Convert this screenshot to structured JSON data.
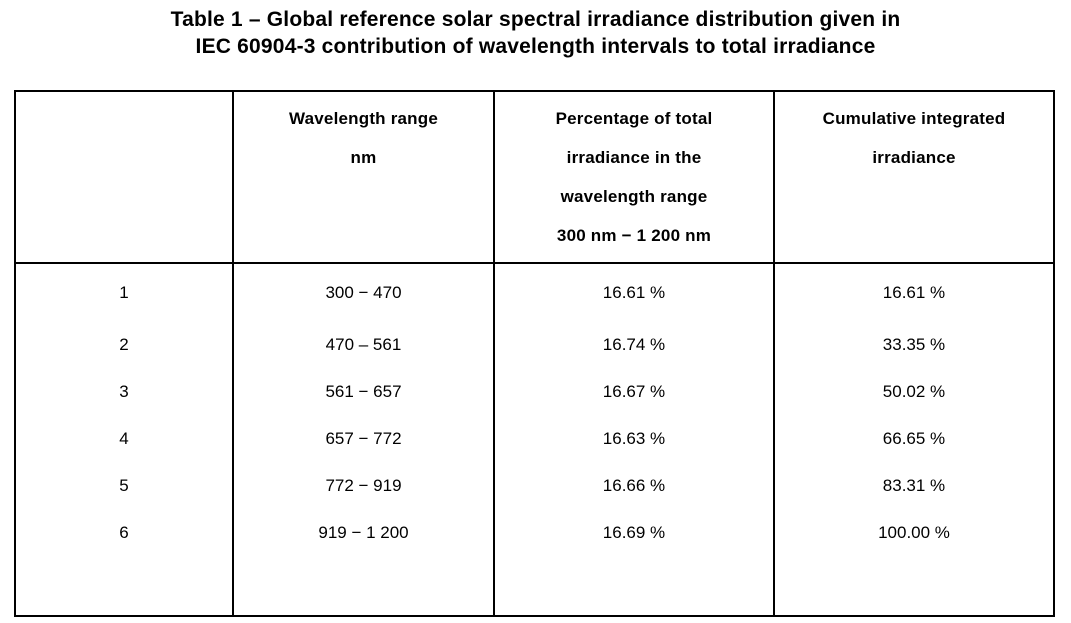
{
  "title": {
    "line1": "Table 1 – Global reference solar spectral irradiance distribution given in",
    "line2": "IEC 60904-3 contribution of wavelength intervals to total irradiance"
  },
  "table": {
    "headers": {
      "row_number": "",
      "wavelength": {
        "line1": "Wavelength range",
        "line2": "nm"
      },
      "percentage": {
        "line1": "Percentage of total",
        "line2": "irradiance in the",
        "line3": "wavelength range",
        "line4": "300 nm − 1 200 nm"
      },
      "cumulative": {
        "line1": "Cumulative integrated",
        "line2": "irradiance"
      }
    },
    "rows": [
      {
        "number": "1",
        "wavelength_range": "300 − 470",
        "percentage_of_total": "16.61 %",
        "cumulative_irradiance": "16.61 %"
      },
      {
        "number": "2",
        "wavelength_range": "470 – 561",
        "percentage_of_total": "16.74 %",
        "cumulative_irradiance": "33.35 %"
      },
      {
        "number": "3",
        "wavelength_range": "561 − 657",
        "percentage_of_total": "16.67 %",
        "cumulative_irradiance": "50.02 %"
      },
      {
        "number": "4",
        "wavelength_range": "657 − 772",
        "percentage_of_total": "16.63 %",
        "cumulative_irradiance": "66.65 %"
      },
      {
        "number": "5",
        "wavelength_range": "772 − 919",
        "percentage_of_total": "16.66 %",
        "cumulative_irradiance": "83.31 %"
      },
      {
        "number": "6",
        "wavelength_range": "919 − 1 200",
        "percentage_of_total": "16.69 %",
        "cumulative_irradiance": "100.00 %"
      }
    ]
  },
  "colors": {
    "text": "#000000",
    "border": "#000000",
    "background": "#ffffff"
  }
}
